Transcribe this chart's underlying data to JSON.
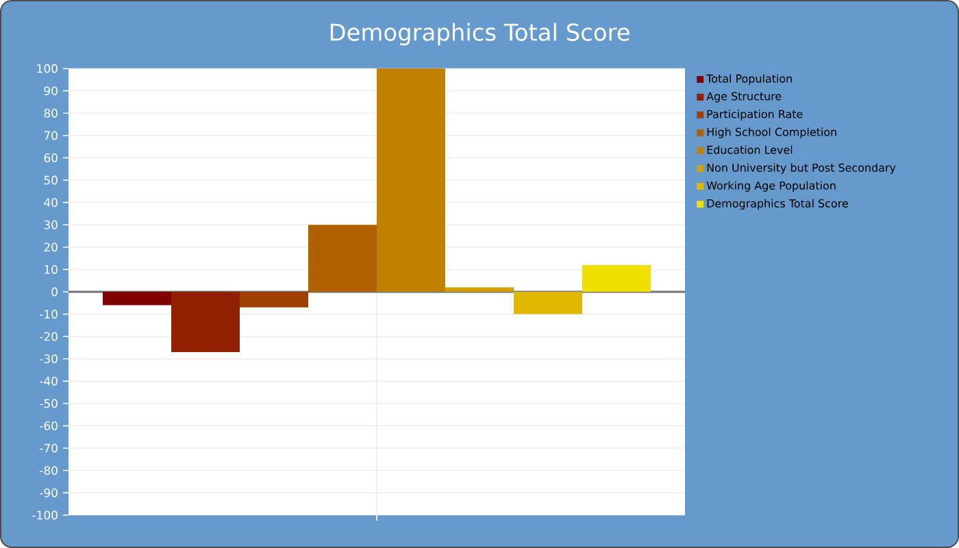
{
  "chart_data": {
    "type": "bar",
    "title": "Demographics Total Score",
    "categories": [
      null
    ],
    "series": [
      {
        "name": "Total Population",
        "color": "#800000",
        "values": [
          -6
        ]
      },
      {
        "name": "Age Structure",
        "color": "#8f2000",
        "values": [
          -27
        ]
      },
      {
        "name": "Participation Rate",
        "color": "#a04000",
        "values": [
          -7
        ]
      },
      {
        "name": "High School Completion",
        "color": "#b06000",
        "values": [
          30
        ]
      },
      {
        "name": "Education Level",
        "color": "#c08000",
        "values": [
          100
        ]
      },
      {
        "name": "Non University but Post Secondary",
        "color": "#d0a000",
        "values": [
          2
        ]
      },
      {
        "name": "Working Age Population",
        "color": "#e0b800",
        "values": [
          -10
        ]
      },
      {
        "name": "Demographics Total Score",
        "color": "#f0e000",
        "values": [
          12
        ]
      }
    ],
    "ylim": [
      -100,
      100
    ],
    "yticks": [
      -100,
      -90,
      -80,
      -70,
      -60,
      -50,
      -40,
      -30,
      -20,
      -10,
      0,
      10,
      20,
      30,
      40,
      50,
      60,
      70,
      80,
      90,
      100
    ],
    "grid": true,
    "legend": "right"
  }
}
